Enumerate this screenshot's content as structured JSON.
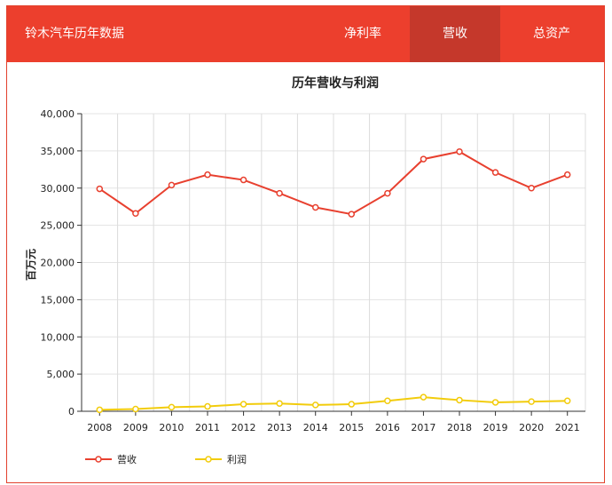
{
  "header": {
    "title": "铃木汽车历年数据",
    "tabs": [
      {
        "label": "净利率",
        "active": false
      },
      {
        "label": "营收",
        "active": true
      },
      {
        "label": "总资产",
        "active": false
      }
    ]
  },
  "colors": {
    "accent": "#ec3f2d",
    "active_tab": "#c5382b",
    "series_revenue": "#e8402f",
    "series_profit": "#f2cc0c"
  },
  "chart_data": {
    "type": "line",
    "title": "历年营收与利润",
    "ylabel": "百万元",
    "xlabel": "",
    "x": [
      "2008",
      "2009",
      "2010",
      "2011",
      "2012",
      "2013",
      "2014",
      "2015",
      "2016",
      "2017",
      "2018",
      "2019",
      "2020",
      "2021"
    ],
    "ylim": [
      0,
      40000
    ],
    "yticks": [
      "0",
      "5,000",
      "10,000",
      "15,000",
      "20,000",
      "25,000",
      "30,000",
      "35,000",
      "40,000"
    ],
    "grid": true,
    "legend_position": "bottom-left",
    "series": [
      {
        "name": "营收",
        "values": [
          29900,
          26600,
          30400,
          31800,
          31100,
          29300,
          27400,
          26500,
          29300,
          33900,
          34900,
          32100,
          30000,
          31800
        ]
      },
      {
        "name": "利润",
        "values": [
          200,
          300,
          550,
          650,
          950,
          1050,
          850,
          950,
          1400,
          1900,
          1500,
          1200,
          1300,
          1400
        ]
      }
    ]
  }
}
